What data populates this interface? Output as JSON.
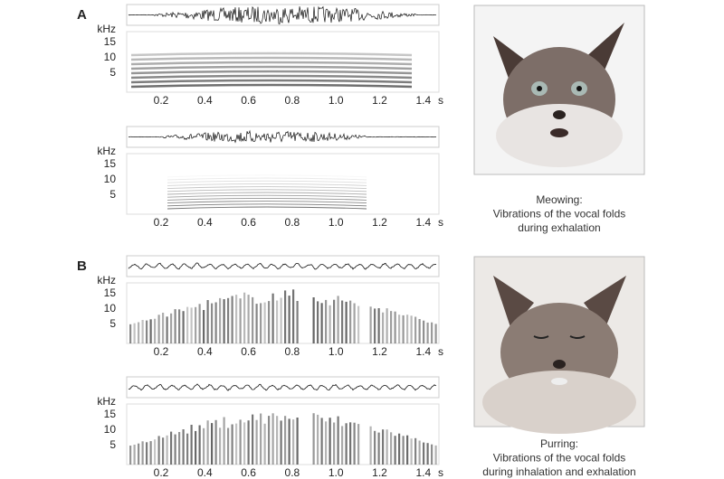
{
  "panels": [
    {
      "label": "A",
      "recordings": [
        {
          "y_unit": "kHz",
          "y_ticks": [
            "15",
            "10",
            "5"
          ],
          "x_ticks": [
            "0.2",
            "0.4",
            "0.6",
            "0.8",
            "1.0",
            "1.2",
            "1.4"
          ],
          "x_unit": "s"
        },
        {
          "y_unit": "kHz",
          "y_ticks": [
            "15",
            "10",
            "5"
          ],
          "x_ticks": [
            "0.2",
            "0.4",
            "0.6",
            "0.8",
            "1.0",
            "1.2",
            "1.4"
          ],
          "x_unit": "s"
        }
      ],
      "caption": [
        "Meowing:",
        "Vibrations of the vocal folds",
        "during exhalation"
      ]
    },
    {
      "label": "B",
      "recordings": [
        {
          "y_unit": "kHz",
          "y_ticks": [
            "15",
            "10",
            "5"
          ],
          "x_ticks": [
            "0.2",
            "0.4",
            "0.6",
            "0.8",
            "1.0",
            "1.2",
            "1.4"
          ],
          "x_unit": "s"
        },
        {
          "y_unit": "kHz",
          "y_ticks": [
            "15",
            "10",
            "5"
          ],
          "x_ticks": [
            "0.2",
            "0.4",
            "0.6",
            "0.8",
            "1.0",
            "1.2",
            "1.4"
          ],
          "x_unit": "s"
        }
      ],
      "caption": [
        "Purring:",
        "Vibrations of the vocal folds",
        "during inhalation and exhalation"
      ]
    }
  ]
}
